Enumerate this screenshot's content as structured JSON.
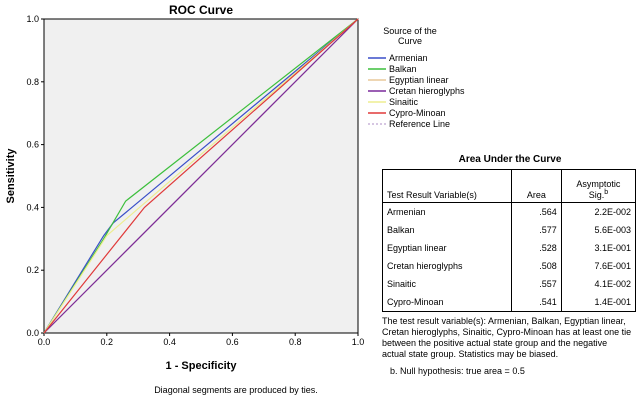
{
  "chart_data": {
    "type": "line",
    "title": "ROC Curve",
    "xlabel": "1 - Specificity",
    "ylabel": "Sensitivity",
    "xlim": [
      0.0,
      1.0
    ],
    "ylim": [
      0.0,
      1.0
    ],
    "x_ticks": [
      "0.0",
      "0.2",
      "0.4",
      "0.6",
      "0.8",
      "1.0"
    ],
    "y_ticks": [
      "0.0",
      "0.2",
      "0.4",
      "0.6",
      "0.8",
      "1.0"
    ],
    "grid": false,
    "legend_placement": "right",
    "legend_title": "Source of the Curve",
    "series": [
      {
        "name": "Armenian",
        "color": "#3a4fc8",
        "x": [
          0,
          0.19,
          0.22,
          1
        ],
        "y": [
          0,
          0.31,
          0.35,
          1
        ]
      },
      {
        "name": "Balkan",
        "color": "#3cbf3c",
        "x": [
          0,
          0.19,
          0.26,
          1
        ],
        "y": [
          0,
          0.3,
          0.42,
          1
        ]
      },
      {
        "name": "Egyptian linear",
        "color": "#e8c89a",
        "x": [
          0,
          1
        ],
        "y": [
          0,
          1
        ]
      },
      {
        "name": "Cretan hieroglyphs",
        "color": "#7a2a9c",
        "x": [
          0,
          1
        ],
        "y": [
          0,
          1
        ]
      },
      {
        "name": "Sinaitic",
        "color": "#eded90",
        "x": [
          0,
          0.2,
          1
        ],
        "y": [
          0,
          0.31,
          1
        ]
      },
      {
        "name": "Cypro-Minoan",
        "color": "#e03a3a",
        "x": [
          0,
          0.32,
          1
        ],
        "y": [
          0,
          0.4,
          1
        ]
      }
    ],
    "reference_line": {
      "name": "Reference Line",
      "color": "#c8b4d8",
      "x": [
        0,
        1
      ],
      "y": [
        0,
        1
      ]
    },
    "footnote": "Diagonal segments are produced by ties."
  },
  "auc_table": {
    "title": "Area Under the Curve",
    "headers": {
      "variable": "Test Result Variable(s)",
      "area": "Area",
      "sig": "Asymptotic Sig.",
      "sig_sup": "b"
    },
    "rows": [
      {
        "variable": "Armenian",
        "area": ".564",
        "sig": "2.2E-002"
      },
      {
        "variable": "Balkan",
        "area": ".577",
        "sig": "5.6E-003"
      },
      {
        "variable": "Egyptian linear",
        "area": ".528",
        "sig": "3.1E-001"
      },
      {
        "variable": "Cretan hieroglyphs",
        "area": ".508",
        "sig": "7.6E-001"
      },
      {
        "variable": "Sinaitic",
        "area": ".557",
        "sig": "4.1E-002"
      },
      {
        "variable": "Cypro-Minoan",
        "area": ".541",
        "sig": "1.4E-001"
      }
    ],
    "note_a": "The test result variable(s): Armenian, Balkan, Egyptian linear, Cretan hieroglyphs, Sinaitic, Cypro-Minoan has at least one tie between the positive actual state group and the negative actual state group. Statistics may be biased.",
    "note_b": "b. Null hypothesis: true area = 0.5"
  }
}
